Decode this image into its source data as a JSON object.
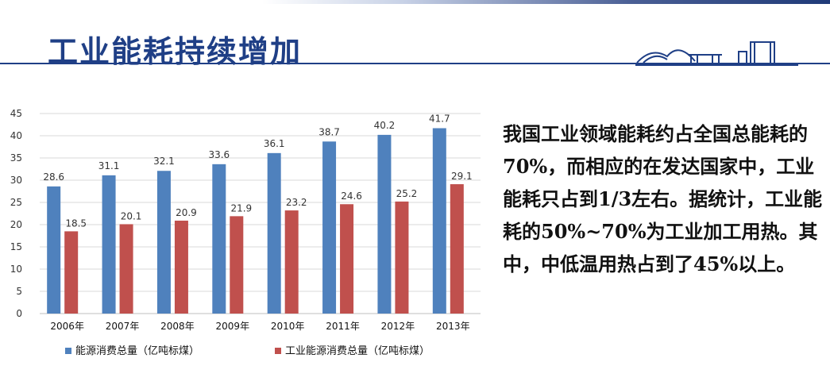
{
  "slide": {
    "title": "工业能耗持续增加",
    "paragraph": "我国工业领域能耗约占全国总能耗的70%，而相应的在发达国家中，工业能耗只占到1/3左右。据统计，工业能耗的50%~70%为工业加工用热。其中，中低温用热占到了45%以上。"
  },
  "colors": {
    "title": "#1f3f86",
    "series1": "#4f81bd",
    "series2": "#c0504d"
  },
  "chart_data": {
    "type": "bar",
    "categories": [
      "2006年",
      "2007年",
      "2008年",
      "2009年",
      "2010年",
      "2011年",
      "2012年",
      "2013年"
    ],
    "series": [
      {
        "name": "能源消费总量（亿吨标煤）",
        "values": [
          28.6,
          31.1,
          32.1,
          33.6,
          36.1,
          38.7,
          40.2,
          41.7
        ]
      },
      {
        "name": "工业能源消费总量（亿吨标煤）",
        "values": [
          18.5,
          20.1,
          20.9,
          21.9,
          23.2,
          24.6,
          25.2,
          29.1
        ]
      }
    ],
    "ylim": [
      0,
      45
    ],
    "yticks": [
      0,
      5,
      10,
      15,
      20,
      25,
      30,
      35,
      40,
      45
    ],
    "grid": true,
    "legend": "bottom"
  }
}
